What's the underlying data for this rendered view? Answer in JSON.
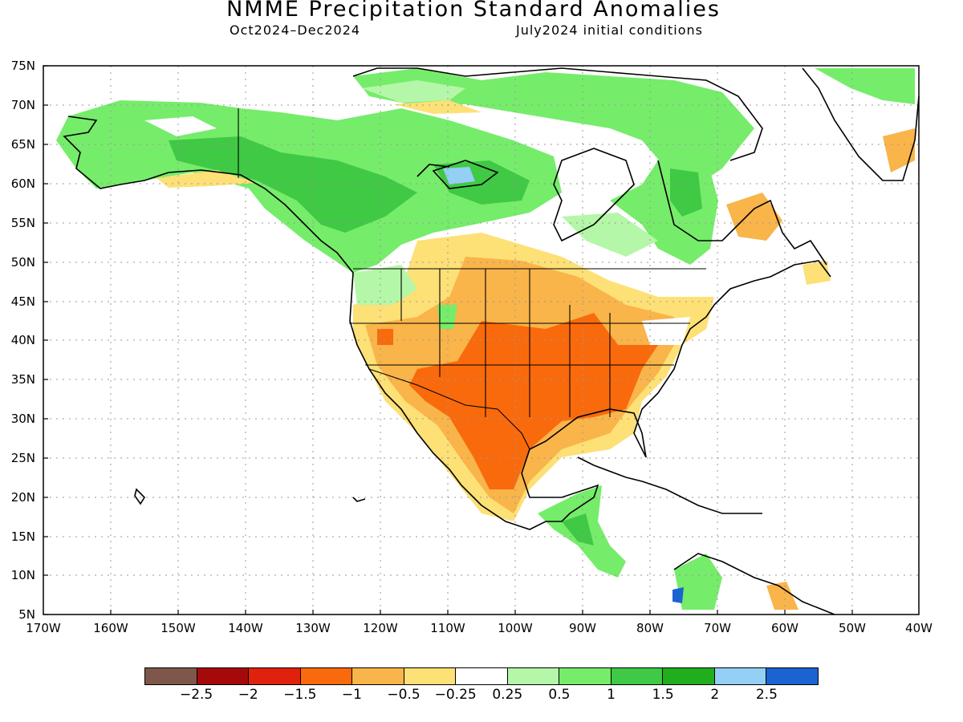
{
  "title": "NMME Precipitation Standard Anomalies",
  "period": "Oct2024–Dec2024",
  "initial_conditions": "July2024 initial conditions",
  "lat_labels": [
    "75N",
    "70N",
    "65N",
    "60N",
    "55N",
    "50N",
    "45N",
    "40N",
    "35N",
    "30N",
    "25N",
    "20N",
    "15N",
    "10N",
    "5N"
  ],
  "lon_labels": [
    "170W",
    "160W",
    "150W",
    "140W",
    "130W",
    "120W",
    "110W",
    "100W",
    "90W",
    "80W",
    "70W",
    "60W",
    "50W",
    "40W"
  ],
  "legend": {
    "colors": [
      "#7f574a",
      "#a50a0a",
      "#e0210b",
      "#f96a0c",
      "#f9b44a",
      "#fde076",
      "#ffffff",
      "#b4f7a8",
      "#76ec6b",
      "#3fc944",
      "#22ad1f",
      "#95cff5",
      "#1b63d3"
    ],
    "ticks": [
      "−2.5",
      "−2",
      "−1.5",
      "−1",
      "−0.5",
      "−0.25",
      "0.25",
      "0.5",
      "1",
      "1.5",
      "2",
      "2.5"
    ]
  },
  "map_colors": {
    "wet_light": "#b4f7a8",
    "wet_mid": "#76ec6b",
    "wet_strong": "#3fc944",
    "wet_very": "#22ad1f",
    "wet_blue": "#95cff5",
    "dry_light": "#fde076",
    "dry_mid": "#f9b44a",
    "dry_strong": "#f96a0c"
  }
}
